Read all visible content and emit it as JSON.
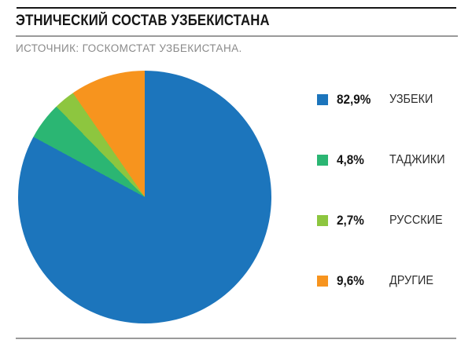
{
  "header": {
    "title": "ЭТНИЧЕСКИЙ СОСТАВ УЗБЕКИСТАНА",
    "source": "ИСТОЧНИК: ГОСКОМСТАТ УЗБЕКИСТАНА."
  },
  "chart_data": {
    "type": "pie",
    "title": "ЭТНИЧЕСКИЙ СОСТАВ УЗБЕКИСТАНА",
    "source": "ИСТОЧНИК: ГОСКОМСТАТ УЗБЕКИСТАНА.",
    "start_angle_deg": 0,
    "direction": "clockwise",
    "legend_position": "right",
    "slices": [
      {
        "label": "УЗБЕКИ",
        "percent_label": "82,9%",
        "value": 82.9,
        "color": "#1C75BC"
      },
      {
        "label": "ТАДЖИКИ",
        "percent_label": "4,8%",
        "value": 4.8,
        "color": "#2BB673"
      },
      {
        "label": "РУССКИЕ",
        "percent_label": "2,7%",
        "value": 2.7,
        "color": "#8DC63F"
      },
      {
        "label": "ДРУГИЕ",
        "percent_label": "9,6%",
        "value": 9.6,
        "color": "#F7941E"
      }
    ]
  },
  "rules": {
    "top_rule_color": "#161616",
    "divider_color": "#9a9a9a",
    "bottom_rule_color": "#9a9a9a"
  }
}
